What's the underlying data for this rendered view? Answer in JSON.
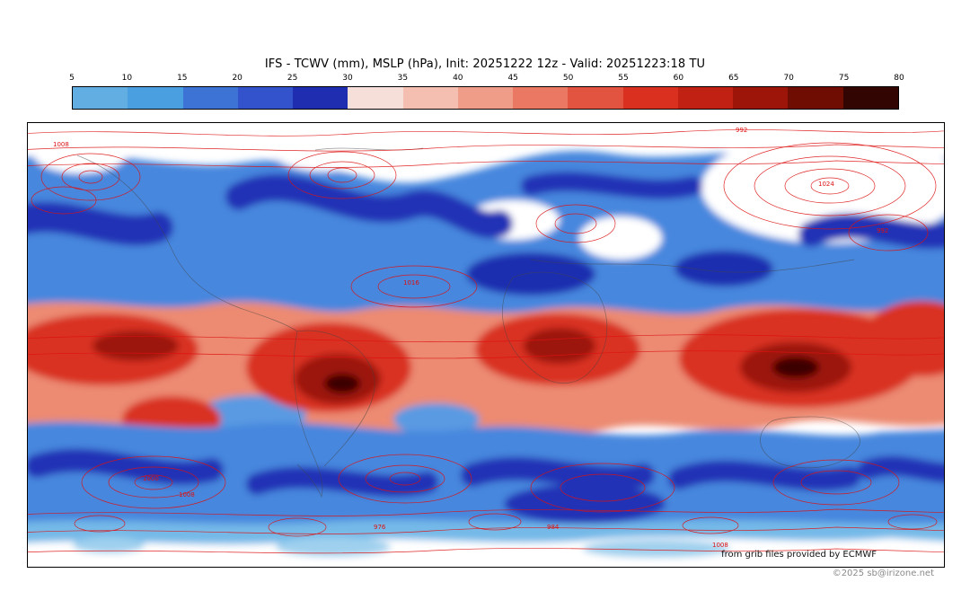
{
  "header": {
    "title": "IFS - TCWV (mm), MSLP (hPa), Init: 20251222 12z - Valid: 20251223:18 TU"
  },
  "colorbar": {
    "unit": "mm",
    "ticks": [
      "5",
      "10",
      "15",
      "20",
      "25",
      "30",
      "35",
      "40",
      "45",
      "50",
      "55",
      "60",
      "65",
      "70",
      "75",
      "80"
    ],
    "colors": [
      "#62aee2",
      "#4a9fe0",
      "#3c73d4",
      "#3353cc",
      "#1f2db0",
      "#f6ded9",
      "#f4bfb0",
      "#ef9c88",
      "#ea7862",
      "#e35440",
      "#d93020",
      "#c02112",
      "#9c1508",
      "#6f0d03",
      "#330502"
    ]
  },
  "map": {
    "contour_labels": [
      "1008",
      "992",
      "1016",
      "1024",
      "984",
      "976",
      "1000",
      "1008",
      "992",
      "1008"
    ],
    "credit": "from grib files provided by ECMWF",
    "copyright": "©2025 sb@irizone.net",
    "colors": {
      "low_tcwv": "#1f2db0",
      "mid_tcwv": "#4687de",
      "moist_band": "#ec8a72",
      "high_tcwv": "#9c1508",
      "isobar": "#dd1111",
      "coastline": "#444444"
    }
  }
}
